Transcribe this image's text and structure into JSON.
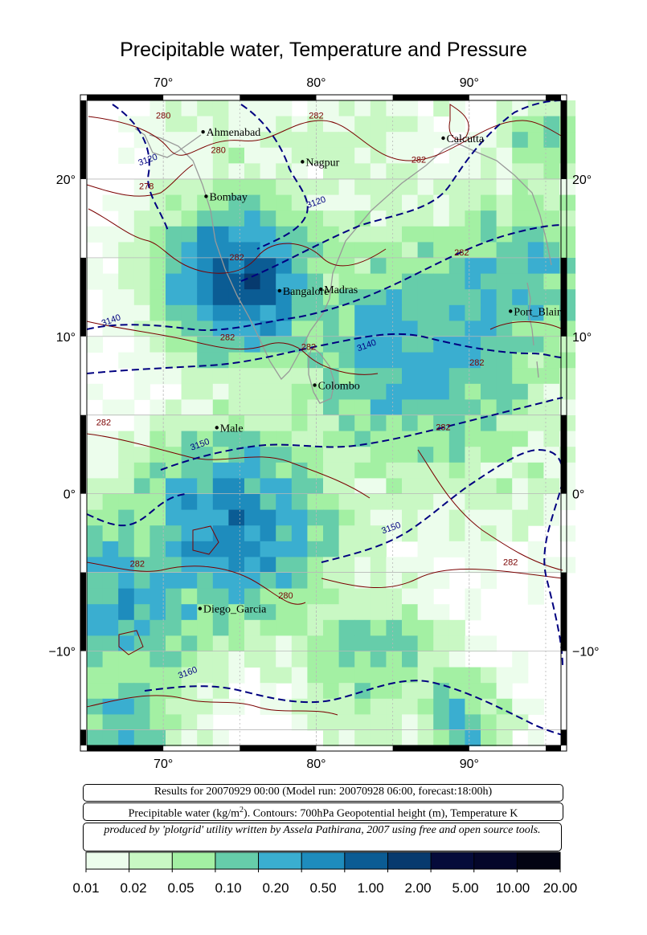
{
  "title": "Precipitable water, Temperature and Pressure",
  "axes": {
    "lon_ticks": [
      "70°",
      "80°",
      "90°"
    ],
    "lat_ticks": [
      "20°",
      "10°",
      "0°",
      "−10°"
    ],
    "lon_range": [
      65,
      96
    ],
    "lat_range": [
      -16,
      25
    ]
  },
  "cities": [
    {
      "name": "Ahmenabad",
      "lon": 72.6,
      "lat": 23.0
    },
    {
      "name": "Calcutta",
      "lon": 88.3,
      "lat": 22.6
    },
    {
      "name": "Nagpur",
      "lon": 79.1,
      "lat": 21.1
    },
    {
      "name": "Bombay",
      "lon": 72.8,
      "lat": 18.9
    },
    {
      "name": "Bangalore",
      "lon": 77.6,
      "lat": 12.9
    },
    {
      "name": "Madras",
      "lon": 80.3,
      "lat": 13.0
    },
    {
      "name": "Port_Blair",
      "lon": 92.7,
      "lat": 11.6
    },
    {
      "name": "Colombo",
      "lon": 79.9,
      "lat": 6.9
    },
    {
      "name": "Male",
      "lon": 73.5,
      "lat": 4.2
    },
    {
      "name": "Diego_Garcia",
      "lon": 72.4,
      "lat": -7.3
    }
  ],
  "contour_labels": [
    {
      "text": "280",
      "lon": 70,
      "lat": 24,
      "kind": "temp"
    },
    {
      "text": "282",
      "lon": 80,
      "lat": 24,
      "kind": "temp"
    },
    {
      "text": "280",
      "lon": 73.6,
      "lat": 21.8,
      "kind": "temp"
    },
    {
      "text": "278",
      "lon": 68.9,
      "lat": 19.5,
      "kind": "temp"
    },
    {
      "text": "282",
      "lon": 86.7,
      "lat": 21.2,
      "kind": "temp"
    },
    {
      "text": "282",
      "lon": 74.8,
      "lat": 15.0,
      "kind": "temp"
    },
    {
      "text": "282",
      "lon": 89.5,
      "lat": 15.3,
      "kind": "temp"
    },
    {
      "text": "282",
      "lon": 74.2,
      "lat": 9.9,
      "kind": "temp"
    },
    {
      "text": "282",
      "lon": 79.5,
      "lat": 9.3,
      "kind": "temp"
    },
    {
      "text": "282",
      "lon": 90.5,
      "lat": 8.3,
      "kind": "temp"
    },
    {
      "text": "282",
      "lon": 66.1,
      "lat": 4.5,
      "kind": "temp"
    },
    {
      "text": "282",
      "lon": 88.3,
      "lat": 4.2,
      "kind": "temp"
    },
    {
      "text": "282",
      "lon": 68.3,
      "lat": -4.5,
      "kind": "temp"
    },
    {
      "text": "282",
      "lon": 92.7,
      "lat": -4.4,
      "kind": "temp"
    },
    {
      "text": "280",
      "lon": 78.0,
      "lat": -6.5,
      "kind": "temp"
    },
    {
      "text": "3120",
      "lon": 69.0,
      "lat": 21.2,
      "kind": "geo"
    },
    {
      "text": "3120",
      "lon": 80.0,
      "lat": 18.5,
      "kind": "geo"
    },
    {
      "text": "3140",
      "lon": 66.6,
      "lat": 11.0,
      "kind": "geo"
    },
    {
      "text": "3140",
      "lon": 83.3,
      "lat": 9.4,
      "kind": "geo"
    },
    {
      "text": "3150",
      "lon": 72.4,
      "lat": 3.1,
      "kind": "geo"
    },
    {
      "text": "3150",
      "lon": 84.9,
      "lat": -2.2,
      "kind": "geo"
    },
    {
      "text": "3160",
      "lon": 71.6,
      "lat": -11.4,
      "kind": "geo"
    }
  ],
  "info": {
    "results": "Results for 20070929 00:00 (Model run: 20070928 06:00, forecast:18:00h)",
    "legend_line_a": "Precipitable water (kg/m",
    "legend_sup": "2",
    "legend_line_b": ").  Contours: 700hPa Geopotential height (m), Temperature K",
    "credit": "produced by 'plotgrid' utility written by Assela Pathirana, 2007 using free and open source tools."
  },
  "colorbar": {
    "labels": [
      "0.01",
      "0.02",
      "0.05",
      "0.10",
      "0.20",
      "0.50",
      "1.00",
      "2.00",
      "5.00",
      "10.00",
      "20.00"
    ],
    "colors": [
      "#ecfdec",
      "#c9f8c4",
      "#a3f0a3",
      "#66cdaa",
      "#3aaed0",
      "#1e8cbd",
      "#0b5c94",
      "#073a6e",
      "#050b3a",
      "#04062a",
      "#020312"
    ]
  },
  "colors": {
    "temp_contour": "#7a0000",
    "geo_contour": "#000080",
    "coast": "#999999",
    "grid": "#b8b8b8"
  }
}
